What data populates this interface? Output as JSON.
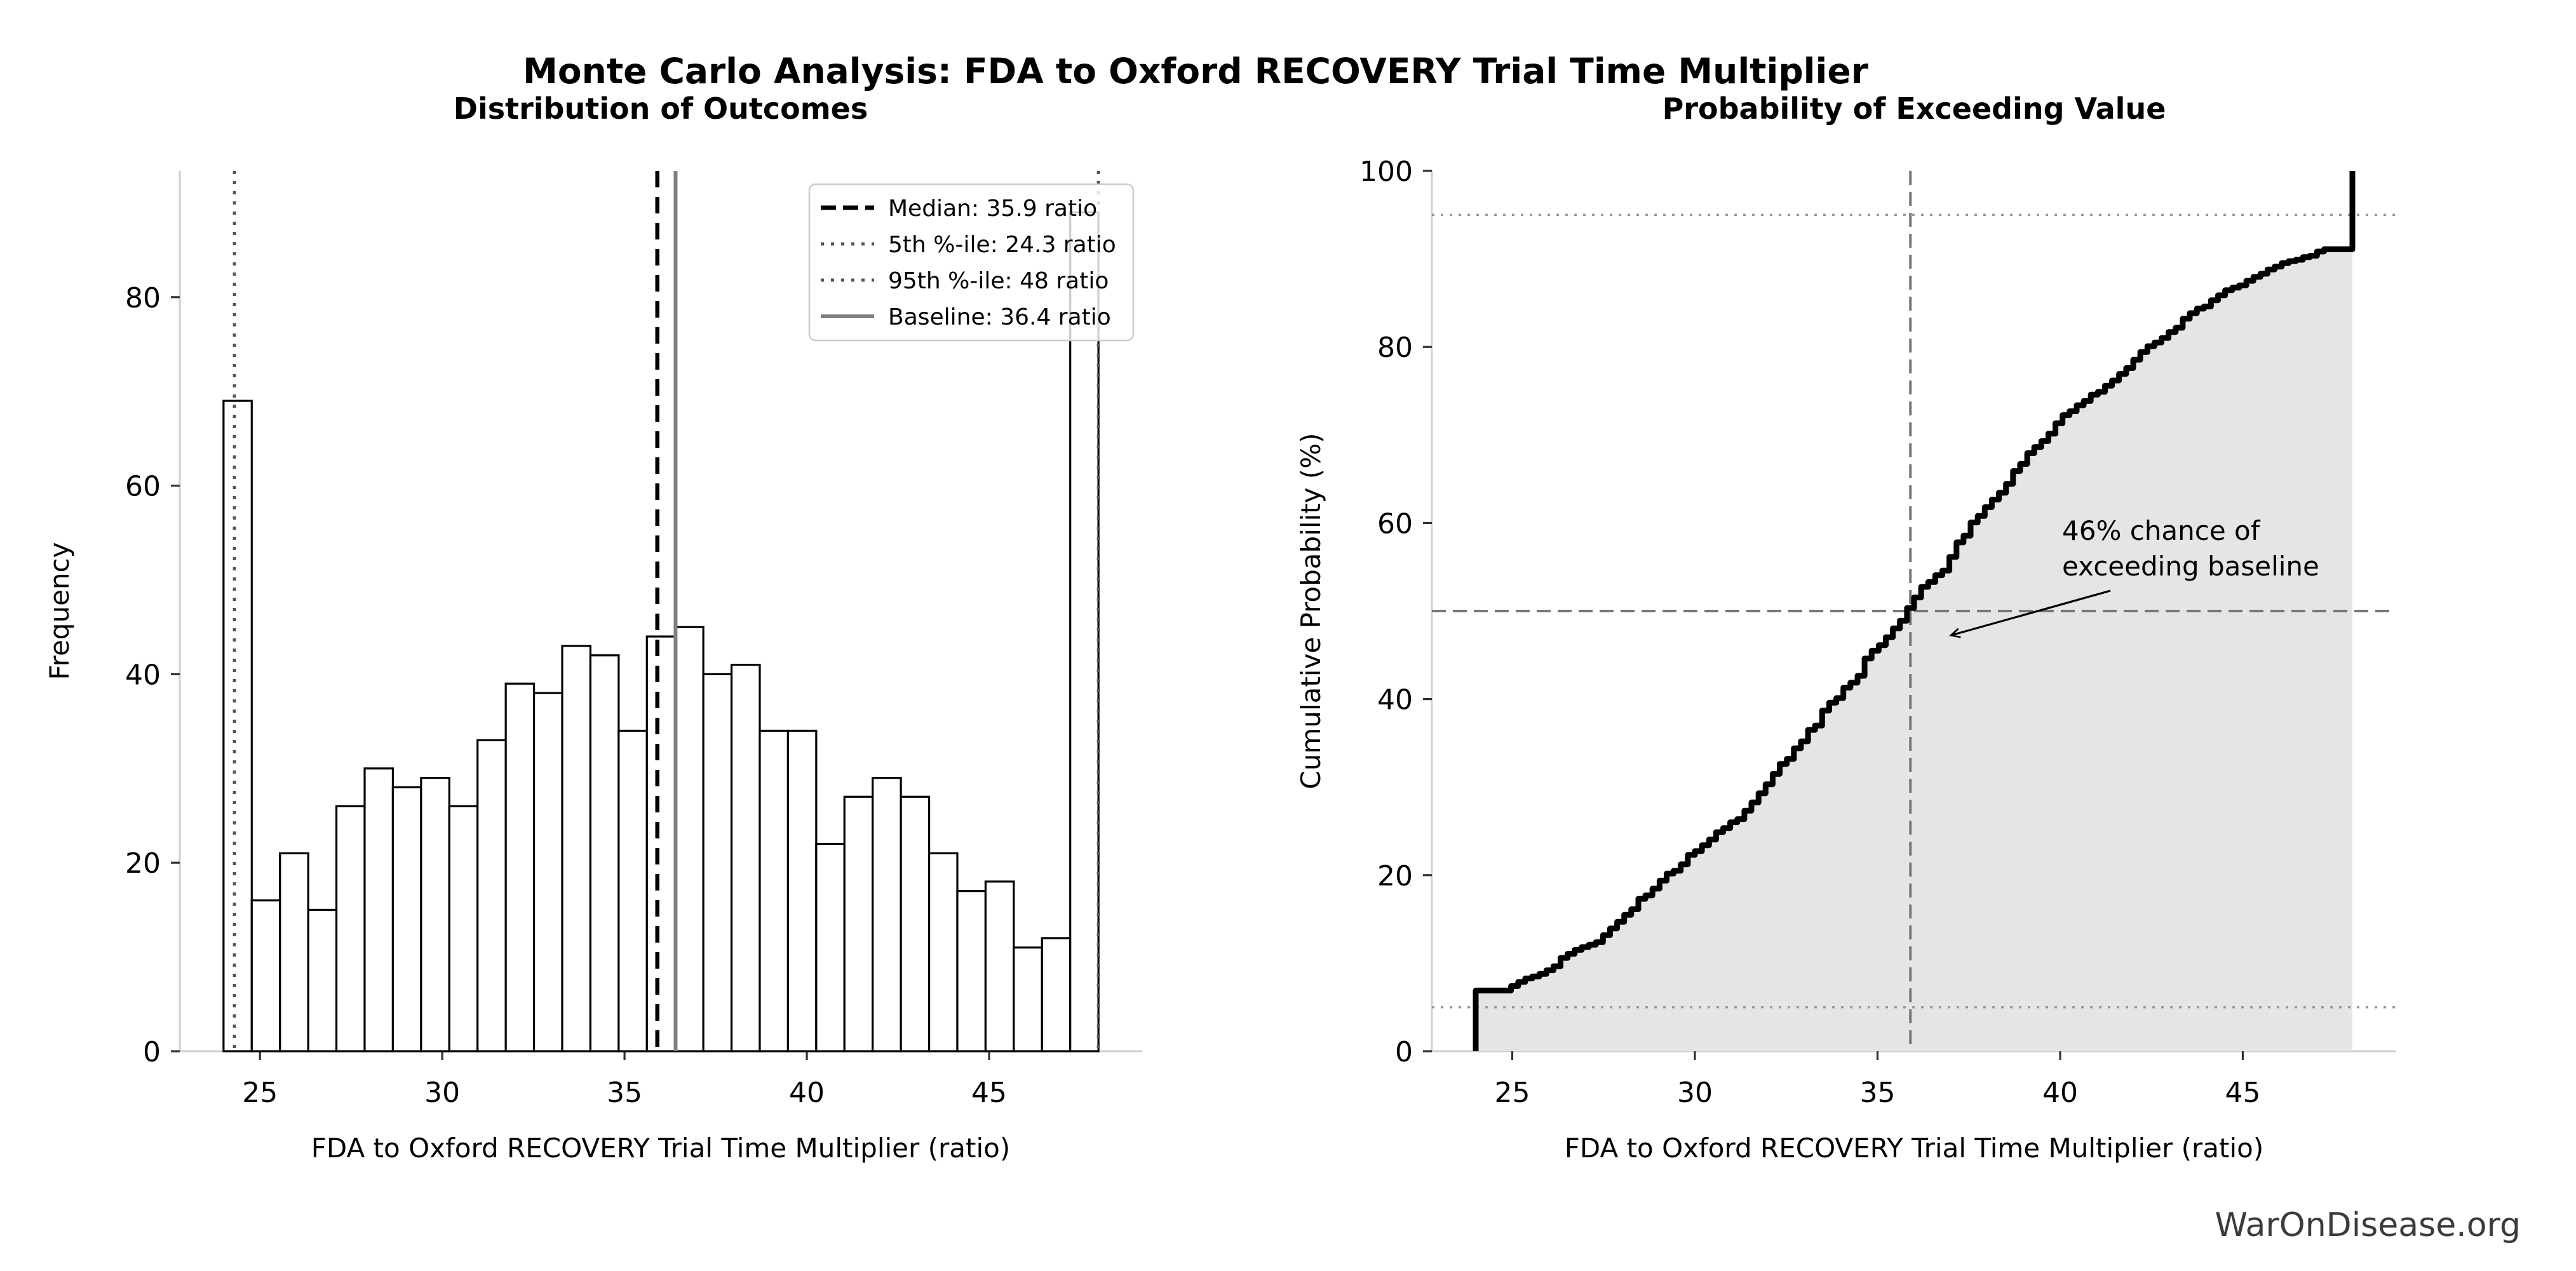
{
  "figure": {
    "title": "Monte Carlo Analysis: FDA to Oxford RECOVERY Trial Time Multiplier",
    "watermark": "WarOnDisease.org"
  },
  "colors": {
    "background": "#ffffff",
    "bar_fill": "#ffffff",
    "bar_edge": "#000000",
    "median_line": "#000000",
    "percentile_line": "#555555",
    "baseline_line": "#808080",
    "cdf_line": "#000000",
    "cdf_fill": "#e5e5e5",
    "reference_dashed": "#777777",
    "reference_dotted": "#9a9a9a",
    "spine": "#cfcfcf",
    "watermark": "#3b3b3b"
  },
  "left_plot": {
    "title": "Distribution of Outcomes",
    "xlabel": "FDA to Oxford RECOVERY Trial Time Multiplier (ratio)",
    "ylabel": "Frequency",
    "xticks": [
      25,
      30,
      35,
      40,
      45
    ],
    "yticks": [
      0,
      20,
      40,
      60,
      80
    ],
    "legend": {
      "items": [
        {
          "label": "Median: 35.9 ratio",
          "style": "dashed-black"
        },
        {
          "label": "5th %-ile: 24.3 ratio",
          "style": "dotted-gray"
        },
        {
          "label": "95th %-ile: 48 ratio",
          "style": "dotted-gray"
        },
        {
          "label": "Baseline: 36.4 ratio",
          "style": "solid-gray"
        }
      ]
    }
  },
  "right_plot": {
    "title": "Probability of Exceeding Value",
    "xlabel": "FDA to Oxford RECOVERY Trial Time Multiplier (ratio)",
    "ylabel": "Cumulative Probability (%)",
    "xticks": [
      25,
      30,
      35,
      40,
      45
    ],
    "yticks": [
      0,
      20,
      40,
      60,
      80,
      100
    ],
    "annotation": {
      "line1": "46% chance of",
      "line2": "exceeding baseline"
    }
  },
  "chart_data": [
    {
      "type": "bar",
      "subtype": "histogram",
      "title": "Distribution of Outcomes",
      "xlabel": "FDA to Oxford RECOVERY Trial Time Multiplier (ratio)",
      "ylabel": "Frequency",
      "bin_start": 24,
      "bin_width": 0.77419,
      "n_bins": 31,
      "frequencies": [
        69,
        16,
        21,
        15,
        26,
        30,
        28,
        29,
        26,
        33,
        39,
        38,
        43,
        42,
        34,
        44,
        45,
        40,
        41,
        34,
        34,
        22,
        27,
        29,
        27,
        21,
        17,
        18,
        11,
        12,
        89
      ],
      "xlim": [
        22.8,
        49.2
      ],
      "ylim": [
        0,
        93.4
      ],
      "grid": false,
      "vlines": {
        "median": 35.9,
        "p5": 24.3,
        "p95": 48,
        "baseline": 36.4
      },
      "legend_position": "upper right"
    },
    {
      "type": "line",
      "subtype": "empirical-cdf",
      "title": "Probability of Exceeding Value",
      "xlabel": "FDA to Oxford RECOVERY Trial Time Multiplier (ratio)",
      "ylabel": "Cumulative Probability (%)",
      "x_start": 24,
      "x_end": 48,
      "step": 0.77419,
      "start_jump_pct": 6.9,
      "edge_pct": [
        6.9,
        6.9,
        8.5,
        10.6,
        12.1,
        14.7,
        17.7,
        20.5,
        23.4,
        26.0,
        29.3,
        33.2,
        37.0,
        41.3,
        45.5,
        48.9,
        53.3,
        57.8,
        61.8,
        65.9,
        69.3,
        72.7,
        74.9,
        77.6,
        80.5,
        83.2,
        85.3,
        87.0,
        88.8,
        89.9,
        91.1
      ],
      "pre_jump_end_pct": 91.3,
      "end_pct": 100,
      "xlim": [
        22.8,
        49.2
      ],
      "ylim": [
        0,
        100
      ],
      "area_fill": true,
      "hlines": {
        "p50": 50,
        "dotted_low": 5,
        "dotted_high": 95
      },
      "vline_median": 35.9,
      "annotation_xy": {
        "text_x": 3246,
        "arrow_tip_pct": 47
      }
    }
  ]
}
